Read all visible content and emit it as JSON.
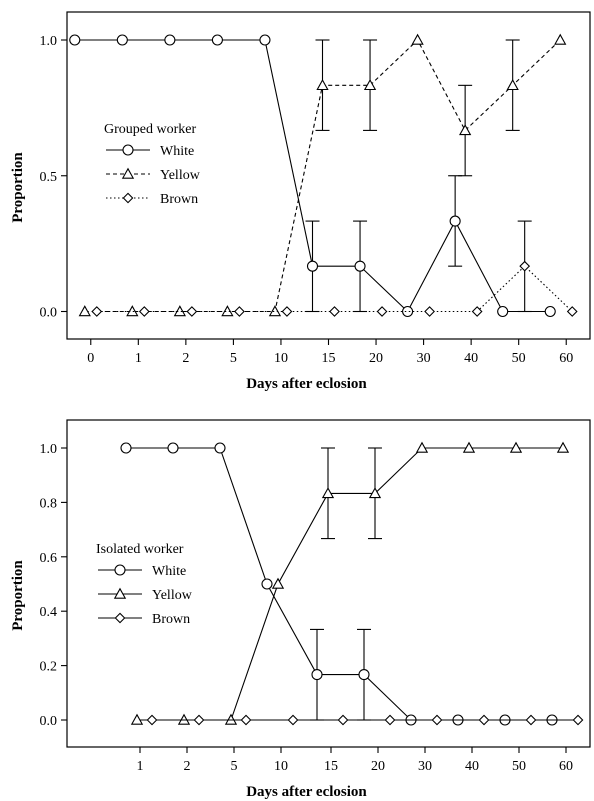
{
  "chart_data": [
    {
      "type": "line",
      "legend_title": "Grouped worker",
      "legend_position": "center-left",
      "xlabel": "Days after eclosion",
      "ylabel": "Proportion",
      "categories": [
        "0",
        "1",
        "2",
        "5",
        "10",
        "15",
        "20",
        "30",
        "40",
        "50",
        "60"
      ],
      "ylim": [
        -0.1,
        1.1
      ],
      "yticks": [
        "0.0",
        "0.5",
        "1.0"
      ],
      "grid": false,
      "series": [
        {
          "name": "White",
          "marker": "circle",
          "dash": "solid",
          "points": [
            {
              "x": 0,
              "y": 1.0
            },
            {
              "x": 1,
              "y": 1.0
            },
            {
              "x": 2,
              "y": 1.0
            },
            {
              "x": 3,
              "y": 1.0
            },
            {
              "x": 4,
              "y": 1.0
            },
            {
              "x": 5,
              "y": 0.167,
              "err": [
                0.0,
                0.333
              ]
            },
            {
              "x": 6,
              "y": 0.167,
              "err": [
                0.0,
                0.333
              ]
            },
            {
              "x": 7,
              "y": 0.0
            },
            {
              "x": 8,
              "y": 0.333,
              "err": [
                0.167,
                0.5
              ]
            },
            {
              "x": 9,
              "y": 0.0
            },
            {
              "x": 10,
              "y": 0.0
            }
          ]
        },
        {
          "name": "Yellow",
          "marker": "triangle",
          "dash": "dashed",
          "points": [
            {
              "x": 0,
              "y": 0.0
            },
            {
              "x": 1,
              "y": 0.0
            },
            {
              "x": 2,
              "y": 0.0
            },
            {
              "x": 3,
              "y": 0.0
            },
            {
              "x": 4,
              "y": 0.0
            },
            {
              "x": 5,
              "y": 0.833,
              "err": [
                0.667,
                1.0
              ]
            },
            {
              "x": 6,
              "y": 0.833,
              "err": [
                0.667,
                1.0
              ]
            },
            {
              "x": 7,
              "y": 1.0
            },
            {
              "x": 8,
              "y": 0.667,
              "err": [
                0.5,
                0.833
              ]
            },
            {
              "x": 9,
              "y": 0.833,
              "err": [
                0.667,
                1.0
              ]
            },
            {
              "x": 10,
              "y": 1.0
            }
          ]
        },
        {
          "name": "Brown",
          "marker": "diamond",
          "dash": "dotted",
          "points": [
            {
              "x": 0,
              "y": 0.0
            },
            {
              "x": 1,
              "y": 0.0
            },
            {
              "x": 2,
              "y": 0.0
            },
            {
              "x": 3,
              "y": 0.0
            },
            {
              "x": 4,
              "y": 0.0
            },
            {
              "x": 5,
              "y": 0.0
            },
            {
              "x": 6,
              "y": 0.0
            },
            {
              "x": 7,
              "y": 0.0
            },
            {
              "x": 8,
              "y": 0.0
            },
            {
              "x": 9,
              "y": 0.167,
              "err": [
                0.0,
                0.333
              ]
            },
            {
              "x": 10,
              "y": 0.0
            }
          ]
        }
      ]
    },
    {
      "type": "line",
      "legend_title": "Isolated worker",
      "legend_position": "center-left",
      "xlabel": "Days after eclosion",
      "ylabel": "Proportion",
      "categories": [
        "1",
        "2",
        "5",
        "10",
        "15",
        "20",
        "30",
        "40",
        "50",
        "60"
      ],
      "ylim": [
        -0.1,
        1.1
      ],
      "yticks": [
        "0.0",
        "0.2",
        "0.4",
        "0.6",
        "0.8",
        "1.0"
      ],
      "grid": false,
      "series": [
        {
          "name": "White",
          "marker": "circle",
          "dash": "solid",
          "points": [
            {
              "x": 1,
              "y": 1.0
            },
            {
              "x": 2,
              "y": 1.0
            },
            {
              "x": 5,
              "y": 1.0
            },
            {
              "x": 10,
              "y": 0.5
            },
            {
              "x": 15,
              "y": 0.167,
              "err": [
                0.0,
                0.333
              ]
            },
            {
              "x": 20,
              "y": 0.167,
              "err": [
                0.0,
                0.333
              ]
            },
            {
              "x": 30,
              "y": 0.0
            },
            {
              "x": 40,
              "y": 0.0
            },
            {
              "x": 50,
              "y": 0.0
            },
            {
              "x": 60,
              "y": 0.0
            }
          ]
        },
        {
          "name": "Yellow",
          "marker": "triangle",
          "dash": "solid",
          "points": [
            {
              "x": 1,
              "y": 0.0
            },
            {
              "x": 2,
              "y": 0.0
            },
            {
              "x": 5,
              "y": 0.0
            },
            {
              "x": 10,
              "y": 0.5
            },
            {
              "x": 15,
              "y": 0.833,
              "err": [
                0.667,
                1.0
              ]
            },
            {
              "x": 20,
              "y": 0.833,
              "err": [
                0.667,
                1.0
              ]
            },
            {
              "x": 30,
              "y": 1.0
            },
            {
              "x": 40,
              "y": 1.0
            },
            {
              "x": 50,
              "y": 1.0
            },
            {
              "x": 60,
              "y": 1.0
            }
          ]
        },
        {
          "name": "Brown",
          "marker": "diamond",
          "dash": "solid",
          "points": [
            {
              "x": 1,
              "y": 0.0
            },
            {
              "x": 2,
              "y": 0.0
            },
            {
              "x": 5,
              "y": 0.0
            },
            {
              "x": 10,
              "y": 0.0
            },
            {
              "x": 15,
              "y": 0.0
            },
            {
              "x": 20,
              "y": 0.0
            },
            {
              "x": 30,
              "y": 0.0
            },
            {
              "x": 40,
              "y": 0.0
            },
            {
              "x": 50,
              "y": 0.0
            },
            {
              "x": 60,
              "y": 0.0
            }
          ]
        }
      ]
    }
  ]
}
